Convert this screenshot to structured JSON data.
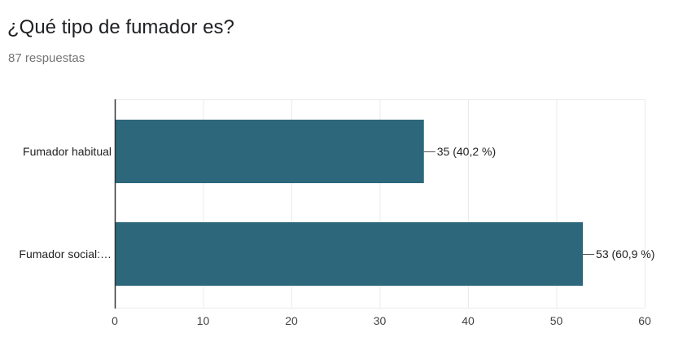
{
  "question": {
    "title": "¿Qué tipo de fumador es?",
    "responses": "87 respuestas"
  },
  "colors": {
    "bar": "#2c677c",
    "grid": "#ebebeb",
    "axis": "#333333"
  },
  "chart_data": {
    "type": "bar",
    "orientation": "horizontal",
    "categories": [
      "Fumador habitual",
      "Fumador social:…"
    ],
    "values": [
      35,
      53
    ],
    "data_labels": [
      "35 (40,2 %)",
      "53 (60,9 %)"
    ],
    "xlim": [
      0,
      60
    ],
    "xticks": [
      0,
      10,
      20,
      30,
      40,
      50,
      60
    ],
    "grid": true,
    "legend": "none"
  }
}
